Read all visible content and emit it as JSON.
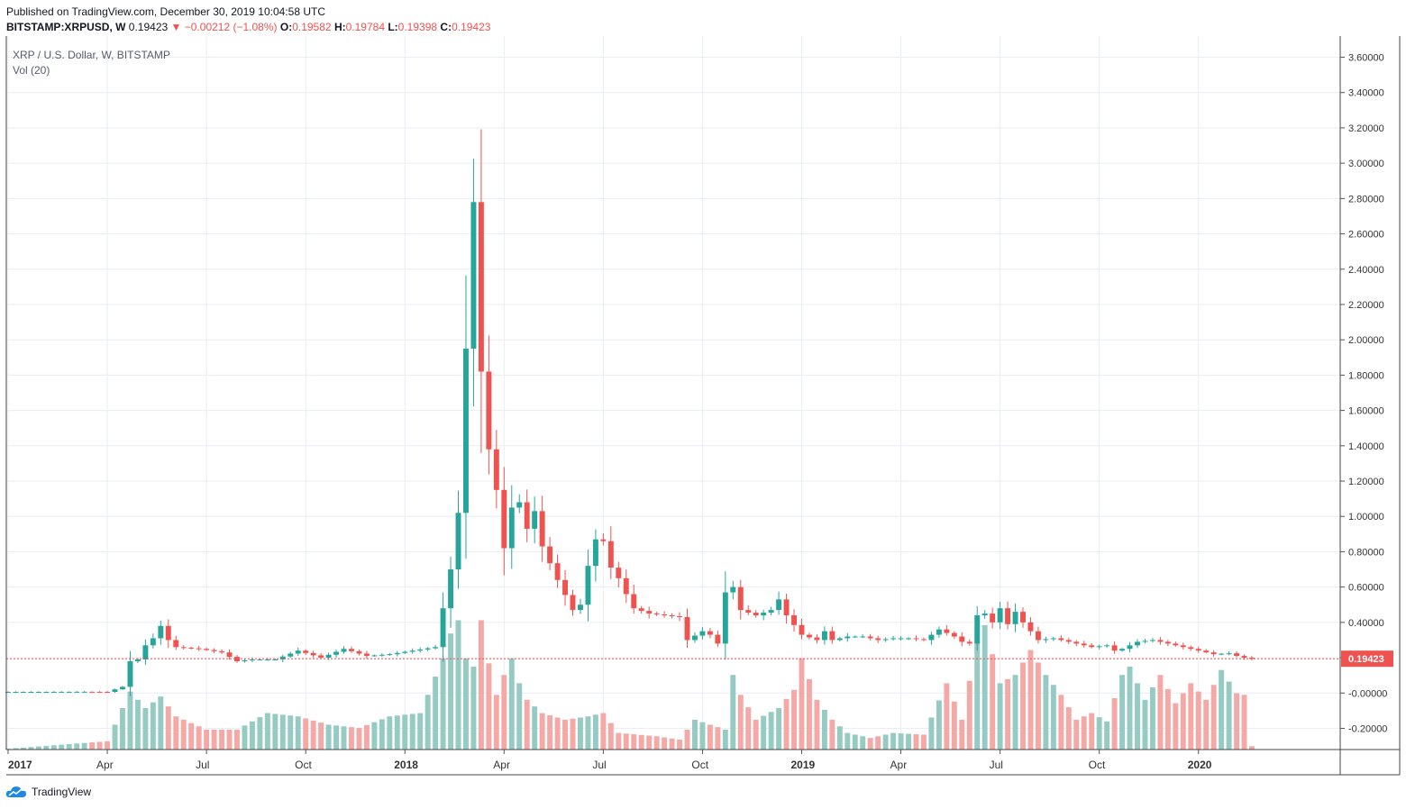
{
  "header": {
    "published": "Published on TradingView.com, December 30, 2019 10:04:58 UTC",
    "symbol": "BITSTAMP:XRPUSD, W",
    "last": "0.19423",
    "change_arrow": "▼",
    "change": "−0.00212 (−1.08%)",
    "o_label": "O:",
    "o_value": "0.19582",
    "h_label": "H:",
    "h_value": "0.19784",
    "l_label": "L:",
    "l_value": "0.19398",
    "c_label": "C:",
    "c_value": "0.19423"
  },
  "legend": {
    "title": "XRP / U.S. Dollar, W, BITSTAMP",
    "volume": "Vol (20)"
  },
  "footer": {
    "brand": "TradingView"
  },
  "colors": {
    "up": "#26a69a",
    "down": "#ef5350",
    "vol_up": "#96cbc3",
    "vol_down": "#f4a9a7",
    "grid": "#e9eef4",
    "axis_text": "#333333",
    "price_line": "#ef5350"
  },
  "chart_data": {
    "type": "candlestick",
    "title": "XRP / U.S. Dollar, W, BITSTAMP",
    "interval": "W",
    "ylim": [
      -0.32,
      3.72
    ],
    "y_ticks": [
      "3.60000",
      "3.40000",
      "3.20000",
      "3.00000",
      "2.80000",
      "2.60000",
      "2.40000",
      "2.20000",
      "2.00000",
      "1.80000",
      "1.60000",
      "1.40000",
      "1.20000",
      "1.00000",
      "0.80000",
      "0.60000",
      "0.40000",
      "0.20000",
      "-0.00000",
      "-0.20000"
    ],
    "x_ticks": [
      "2017",
      "Apr",
      "Jul",
      "Oct",
      "2018",
      "Apr",
      "Jul",
      "Oct",
      "2019",
      "Apr",
      "Jul",
      "Oct",
      "2020"
    ],
    "last_price": "0.19423",
    "grid": true,
    "anchors": [
      [
        0,
        0.0063
      ],
      [
        5,
        0.0066
      ],
      [
        10,
        0.0072
      ],
      [
        13,
        0.0065
      ],
      [
        15,
        0.035
      ],
      [
        16,
        0.18
      ],
      [
        17,
        0.19
      ],
      [
        18,
        0.27
      ],
      [
        19,
        0.31
      ],
      [
        20,
        0.38
      ],
      [
        21,
        0.3
      ],
      [
        22,
        0.26
      ],
      [
        25,
        0.25
      ],
      [
        28,
        0.23
      ],
      [
        30,
        0.18
      ],
      [
        32,
        0.19
      ],
      [
        35,
        0.19
      ],
      [
        38,
        0.24
      ],
      [
        41,
        0.2
      ],
      [
        44,
        0.25
      ],
      [
        47,
        0.21
      ],
      [
        50,
        0.22
      ],
      [
        53,
        0.24
      ],
      [
        56,
        0.26
      ],
      [
        58,
        0.7
      ],
      [
        59,
        1.02
      ],
      [
        60,
        1.95
      ],
      [
        61,
        2.78
      ],
      [
        62,
        1.82
      ],
      [
        63,
        1.38
      ],
      [
        64,
        1.15
      ],
      [
        65,
        0.82
      ],
      [
        66,
        1.05
      ],
      [
        67,
        1.08
      ],
      [
        68,
        0.93
      ],
      [
        69,
        1.03
      ],
      [
        70,
        0.83
      ],
      [
        72,
        0.64
      ],
      [
        74,
        0.47
      ],
      [
        75,
        0.5
      ],
      [
        76,
        0.72
      ],
      [
        77,
        0.87
      ],
      [
        78,
        0.86
      ],
      [
        79,
        0.71
      ],
      [
        80,
        0.65
      ],
      [
        81,
        0.56
      ],
      [
        82,
        0.48
      ],
      [
        84,
        0.45
      ],
      [
        86,
        0.44
      ],
      [
        88,
        0.43
      ],
      [
        89,
        0.3
      ],
      [
        91,
        0.35
      ],
      [
        92,
        0.33
      ],
      [
        93,
        0.28
      ],
      [
        94,
        0.57
      ],
      [
        95,
        0.6
      ],
      [
        96,
        0.47
      ],
      [
        98,
        0.44
      ],
      [
        100,
        0.47
      ],
      [
        101,
        0.53
      ],
      [
        102,
        0.44
      ],
      [
        104,
        0.33
      ],
      [
        106,
        0.3
      ],
      [
        107,
        0.35
      ],
      [
        108,
        0.3
      ],
      [
        110,
        0.32
      ],
      [
        112,
        0.32
      ],
      [
        114,
        0.3
      ],
      [
        116,
        0.31
      ],
      [
        118,
        0.31
      ],
      [
        120,
        0.3
      ],
      [
        122,
        0.36
      ],
      [
        124,
        0.32
      ],
      [
        125,
        0.29
      ],
      [
        126,
        0.28
      ],
      [
        127,
        0.44
      ],
      [
        128,
        0.45
      ],
      [
        129,
        0.4
      ],
      [
        130,
        0.48
      ],
      [
        131,
        0.39
      ],
      [
        132,
        0.46
      ],
      [
        133,
        0.4
      ],
      [
        135,
        0.3
      ],
      [
        137,
        0.31
      ],
      [
        139,
        0.29
      ],
      [
        142,
        0.26
      ],
      [
        144,
        0.27
      ],
      [
        145,
        0.24
      ],
      [
        146,
        0.25
      ],
      [
        148,
        0.29
      ],
      [
        150,
        0.3
      ],
      [
        152,
        0.28
      ],
      [
        154,
        0.26
      ],
      [
        156,
        0.24
      ],
      [
        158,
        0.22
      ],
      [
        160,
        0.225
      ],
      [
        161,
        0.21
      ],
      [
        162,
        0.2
      ],
      [
        163,
        0.19423
      ]
    ],
    "volume_anchors": [
      [
        0,
        0.005
      ],
      [
        13,
        0.05
      ],
      [
        16,
        0.35
      ],
      [
        18,
        0.25
      ],
      [
        20,
        0.32
      ],
      [
        22,
        0.2
      ],
      [
        26,
        0.12
      ],
      [
        30,
        0.12
      ],
      [
        34,
        0.22
      ],
      [
        38,
        0.2
      ],
      [
        42,
        0.15
      ],
      [
        46,
        0.13
      ],
      [
        50,
        0.2
      ],
      [
        54,
        0.22
      ],
      [
        57,
        0.55
      ],
      [
        58,
        0.7
      ],
      [
        59,
        0.78
      ],
      [
        60,
        0.55
      ],
      [
        61,
        0.5
      ],
      [
        62,
        0.78
      ],
      [
        63,
        0.52
      ],
      [
        64,
        0.33
      ],
      [
        65,
        0.45
      ],
      [
        66,
        0.55
      ],
      [
        67,
        0.4
      ],
      [
        68,
        0.3
      ],
      [
        70,
        0.22
      ],
      [
        73,
        0.18
      ],
      [
        76,
        0.2
      ],
      [
        78,
        0.22
      ],
      [
        80,
        0.1
      ],
      [
        85,
        0.08
      ],
      [
        88,
        0.06
      ],
      [
        90,
        0.18
      ],
      [
        94,
        0.12
      ],
      [
        95,
        0.45
      ],
      [
        96,
        0.33
      ],
      [
        98,
        0.18
      ],
      [
        101,
        0.25
      ],
      [
        103,
        0.36
      ],
      [
        104,
        0.55
      ],
      [
        106,
        0.3
      ],
      [
        108,
        0.18
      ],
      [
        110,
        0.1
      ],
      [
        113,
        0.07
      ],
      [
        116,
        0.1
      ],
      [
        120,
        0.09
      ],
      [
        123,
        0.4
      ],
      [
        125,
        0.18
      ],
      [
        127,
        0.65
      ],
      [
        128,
        0.75
      ],
      [
        130,
        0.4
      ],
      [
        132,
        0.45
      ],
      [
        134,
        0.6
      ],
      [
        136,
        0.45
      ],
      [
        138,
        0.33
      ],
      [
        140,
        0.18
      ],
      [
        142,
        0.22
      ],
      [
        144,
        0.17
      ],
      [
        146,
        0.45
      ],
      [
        147,
        0.5
      ],
      [
        149,
        0.3
      ],
      [
        151,
        0.45
      ],
      [
        153,
        0.28
      ],
      [
        155,
        0.4
      ],
      [
        157,
        0.3
      ],
      [
        159,
        0.48
      ],
      [
        161,
        0.34
      ],
      [
        162,
        0.33
      ],
      [
        163,
        0.02
      ]
    ]
  }
}
